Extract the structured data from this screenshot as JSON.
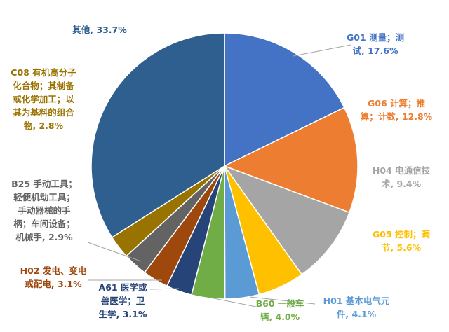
{
  "chart_data": {
    "type": "pie",
    "title": "",
    "start_angle_deg": 0,
    "direction": "clockwise",
    "slices": [
      {
        "label_lines": [
          "G01 测量；测",
          "试, 17.6%"
        ],
        "value": 17.6,
        "color": "#4472C4",
        "label_color": "#4472C4"
      },
      {
        "label_lines": [
          "G06 计算；推",
          "算；计数, 12.8%"
        ],
        "value": 12.8,
        "color": "#ED7D31",
        "label_color": "#ED7D31"
      },
      {
        "label_lines": [
          "H04 电通信技",
          "术, 9.4%"
        ],
        "value": 9.4,
        "color": "#A5A5A5",
        "label_color": "#A5A5A5"
      },
      {
        "label_lines": [
          "G05 控制；调",
          "节, 5.6%"
        ],
        "value": 5.6,
        "color": "#FFC000",
        "label_color": "#FFC000"
      },
      {
        "label_lines": [
          "H01 基本电气元",
          "件, 4.1%"
        ],
        "value": 4.1,
        "color": "#5B9BD5",
        "label_color": "#5B9BD5"
      },
      {
        "label_lines": [
          "B60 一般车",
          "辆, 4.0%"
        ],
        "value": 4.0,
        "color": "#70AD47",
        "label_color": "#70AD47"
      },
      {
        "label_lines": [
          "A61 医学或",
          "兽医学；卫",
          "生学, 3.1%"
        ],
        "value": 3.1,
        "color": "#264478",
        "label_color": "#264478"
      },
      {
        "label_lines": [
          "H02 发电、变电",
          "或配电, 3.1%"
        ],
        "value": 3.1,
        "color": "#9E480E",
        "label_color": "#9E480E"
      },
      {
        "label_lines": [
          "B25 手动工具；",
          "轻便机动工具；",
          "手动器械的手",
          "柄；车间设备；",
          "机械手, 2.9%"
        ],
        "value": 2.9,
        "color": "#636363",
        "label_color": "#636363"
      },
      {
        "label_lines": [
          "C08 有机高分子",
          "化合物；其制备",
          "或化学加工；以",
          "其为基料的组合",
          "物, 2.8%"
        ],
        "value": 2.8,
        "color": "#997300",
        "label_color": "#997300"
      },
      {
        "label_lines": [
          "其他, 33.7%"
        ],
        "value": 33.7,
        "color": "#2E5F8E",
        "label_color": "#2E5F8E"
      }
    ]
  }
}
